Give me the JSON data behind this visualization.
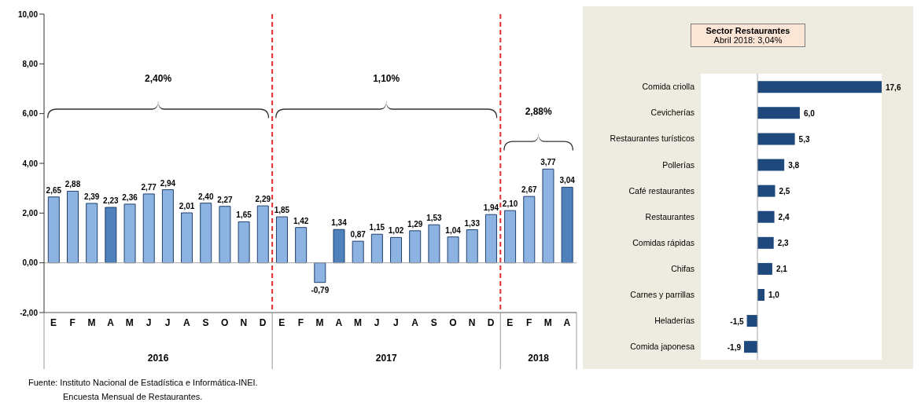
{
  "chart_data": [
    {
      "type": "bar",
      "categories": [
        "E",
        "F",
        "M",
        "A",
        "M",
        "J",
        "J",
        "A",
        "S",
        "O",
        "N",
        "D",
        "E",
        "F",
        "M",
        "A",
        "M",
        "J",
        "J",
        "A",
        "S",
        "O",
        "N",
        "D",
        "E",
        "F",
        "M",
        "A"
      ],
      "values": [
        2.65,
        2.88,
        2.39,
        2.23,
        2.36,
        2.77,
        2.94,
        2.01,
        2.4,
        2.27,
        1.65,
        2.29,
        1.85,
        1.42,
        -0.79,
        1.34,
        0.87,
        1.15,
        1.02,
        1.29,
        1.53,
        1.04,
        1.33,
        1.94,
        2.1,
        2.67,
        3.77,
        3.04
      ],
      "colors": [
        "#8db3e2",
        "#8db3e2",
        "#8db3e2",
        "#4f81bd",
        "#8db3e2",
        "#8db3e2",
        "#8db3e2",
        "#8db3e2",
        "#8db3e2",
        "#8db3e2",
        "#8db3e2",
        "#8db3e2",
        "#8db3e2",
        "#8db3e2",
        "#8db3e2",
        "#4f81bd",
        "#8db3e2",
        "#8db3e2",
        "#8db3e2",
        "#8db3e2",
        "#8db3e2",
        "#8db3e2",
        "#8db3e2",
        "#8db3e2",
        "#8db3e2",
        "#8db3e2",
        "#8db3e2",
        "#4f81bd"
      ],
      "value_labels": [
        "2,65",
        "2,88",
        "2,39",
        "2,23",
        "2,36",
        "2,77",
        "2,94",
        "2,01",
        "2,40",
        "2,27",
        "1,65",
        "2,29",
        "1,85",
        "1,42",
        "-0,79",
        "1,34",
        "0,87",
        "1,15",
        "1,02",
        "1,29",
        "1,53",
        "1,04",
        "1,33",
        "1,94",
        "2,10",
        "2,67",
        "3,77",
        "3,04"
      ],
      "ylim": [
        -2,
        10
      ],
      "yticks": [
        {
          "value": -2,
          "label": "-2,00"
        },
        {
          "value": 0,
          "label": "0,00"
        },
        {
          "value": 2,
          "label": "2,00"
        },
        {
          "value": 4,
          "label": "4,00"
        },
        {
          "value": 6,
          "label": "6,00"
        },
        {
          "value": 8,
          "label": "8,00"
        },
        {
          "value": 10,
          "label": "10,00"
        }
      ],
      "ref_lines": [
        {
          "axis": "y",
          "value": 0,
          "color": "#a6a6a6"
        }
      ],
      "annotations": [
        "2,40%",
        "1,10%",
        "2,88%",
        "2016",
        "2017",
        "2018",
        "Fuente: Instituto Nacional de Estadística e Informática-INEI.",
        "Encuesta Mensual de Restaurantes."
      ]
    },
    {
      "type": "bar",
      "orientation": "horizontal",
      "title": "Sector Restaurantes",
      "subtitle": "Abril 2018: 3,04%",
      "categories": [
        "Comida criolla",
        "Cevicherías",
        "Restaurantes turísticos",
        "Pollerías",
        "Café restaurantes",
        "Restaurantes",
        "Comidas rápidas",
        "Chifas",
        "Carnes y parrillas",
        "Heladerías",
        "Comida japonesa"
      ],
      "values": [
        17.6,
        6.0,
        5.3,
        3.8,
        2.5,
        2.4,
        2.3,
        2.1,
        1.0,
        -1.5,
        -1.9
      ],
      "value_labels": [
        "17,6",
        "6,0",
        "5,3",
        "3,8",
        "2,5",
        "2,4",
        "2,3",
        "2,1",
        "1,0",
        "-1,5",
        "-1,9"
      ],
      "color": "#1f497d",
      "ref_lines": [
        {
          "axis": "x",
          "value": 0,
          "color": "#a6a6a6"
        }
      ]
    }
  ]
}
